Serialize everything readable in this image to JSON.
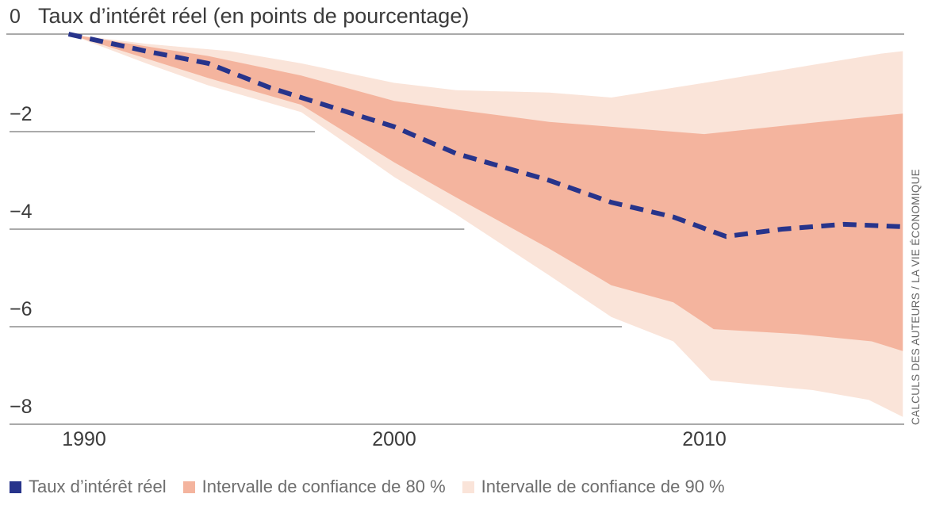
{
  "title": "Taux d’intérêt réel (en points de pourcentage)",
  "credit": "CALCULS DES AUTEURS / LA VIE ÉCONOMIQUE",
  "legend": [
    {
      "label": "Taux d’intérêt réel",
      "color": "#27348b"
    },
    {
      "label": "Intervalle de confiance de 80 %",
      "color": "#f4b49e"
    },
    {
      "label": "Intervalle de confiance de 90 %",
      "color": "#fae4d9"
    }
  ],
  "colors": {
    "line": "#27348b",
    "band80": "#f4b49e",
    "band90": "#fae4d9",
    "gridline": "#8d8d8d",
    "axis_text": "#3b3b3b",
    "legend_text": "#6e6e6e"
  },
  "chart_data": {
    "type": "area",
    "title": "Taux d’intérêt réel (en points de pourcentage)",
    "xlabel": "",
    "ylabel": "points de pourcentage",
    "xlim": [
      1988.1,
      2016.4
    ],
    "ylim": [
      -8.6,
      0.3
    ],
    "grid": "horizontal, hidden under bands",
    "legend_position": "bottom",
    "yticks": [
      {
        "value": 0,
        "label": "0"
      },
      {
        "value": -2,
        "label": "−2"
      },
      {
        "value": -4,
        "label": "−4"
      },
      {
        "value": -6,
        "label": "−6"
      },
      {
        "value": -8,
        "label": "−8"
      }
    ],
    "xticks": [
      {
        "value": 1990,
        "label": "1990"
      },
      {
        "value": 2000,
        "label": "2000"
      },
      {
        "value": 2010,
        "label": "2010"
      }
    ],
    "series": [
      {
        "name": "Taux d’intérêt réel",
        "type": "dashed-line",
        "color": "#27348b",
        "points": [
          [
            1989.5,
            0
          ],
          [
            1992,
            -0.35
          ],
          [
            1994,
            -0.6
          ],
          [
            1996,
            -1.1
          ],
          [
            1999,
            -1.7
          ],
          [
            2000,
            -1.9
          ],
          [
            2002,
            -2.45
          ],
          [
            2005,
            -3.0
          ],
          [
            2007,
            -3.45
          ],
          [
            2009,
            -3.75
          ],
          [
            2010.7,
            -4.15
          ],
          [
            2012.5,
            -4.0
          ],
          [
            2014.5,
            -3.9
          ],
          [
            2016.4,
            -3.95
          ]
        ]
      },
      {
        "name": "Intervalle de confiance de 80 %",
        "type": "band",
        "color": "#f4b49e",
        "upper": [
          [
            1989.5,
            0
          ],
          [
            1992,
            -0.25
          ],
          [
            1994,
            -0.45
          ],
          [
            1997,
            -0.85
          ],
          [
            2000,
            -1.37
          ],
          [
            2002,
            -1.55
          ],
          [
            2005,
            -1.8
          ],
          [
            2007,
            -1.9
          ],
          [
            2010,
            -2.05
          ],
          [
            2013,
            -1.85
          ],
          [
            2015.3,
            -1.7
          ],
          [
            2016.4,
            -1.63
          ]
        ],
        "lower": [
          [
            1989.5,
            0
          ],
          [
            1992,
            -0.5
          ],
          [
            1994,
            -0.9
          ],
          [
            1997,
            -1.45
          ],
          [
            2000,
            -2.63
          ],
          [
            2002,
            -3.35
          ],
          [
            2005,
            -4.4
          ],
          [
            2007,
            -5.15
          ],
          [
            2009,
            -5.5
          ],
          [
            2010.3,
            -6.05
          ],
          [
            2013,
            -6.15
          ],
          [
            2015.4,
            -6.3
          ],
          [
            2016.4,
            -6.5
          ]
        ]
      },
      {
        "name": "Intervalle de confiance de 90 %",
        "type": "band",
        "color": "#fae4d9",
        "upper": [
          [
            1989.5,
            0
          ],
          [
            1992,
            -0.2
          ],
          [
            1994.7,
            -0.35
          ],
          [
            1997,
            -0.6
          ],
          [
            2000,
            -1.0
          ],
          [
            2002,
            -1.15
          ],
          [
            2005,
            -1.2
          ],
          [
            2007,
            -1.3
          ],
          [
            2010,
            -1.0
          ],
          [
            2015.7,
            -0.4
          ],
          [
            2016.4,
            -0.35
          ]
        ],
        "lower": [
          [
            1989.5,
            0
          ],
          [
            1992,
            -0.6
          ],
          [
            1994,
            -1.05
          ],
          [
            1997,
            -1.6
          ],
          [
            2000,
            -2.93
          ],
          [
            2002,
            -3.7
          ],
          [
            2005,
            -4.95
          ],
          [
            2007,
            -5.8
          ],
          [
            2009,
            -6.3
          ],
          [
            2010.2,
            -7.1
          ],
          [
            2013.5,
            -7.3
          ],
          [
            2015.3,
            -7.5
          ],
          [
            2016.4,
            -7.85
          ]
        ]
      }
    ]
  }
}
